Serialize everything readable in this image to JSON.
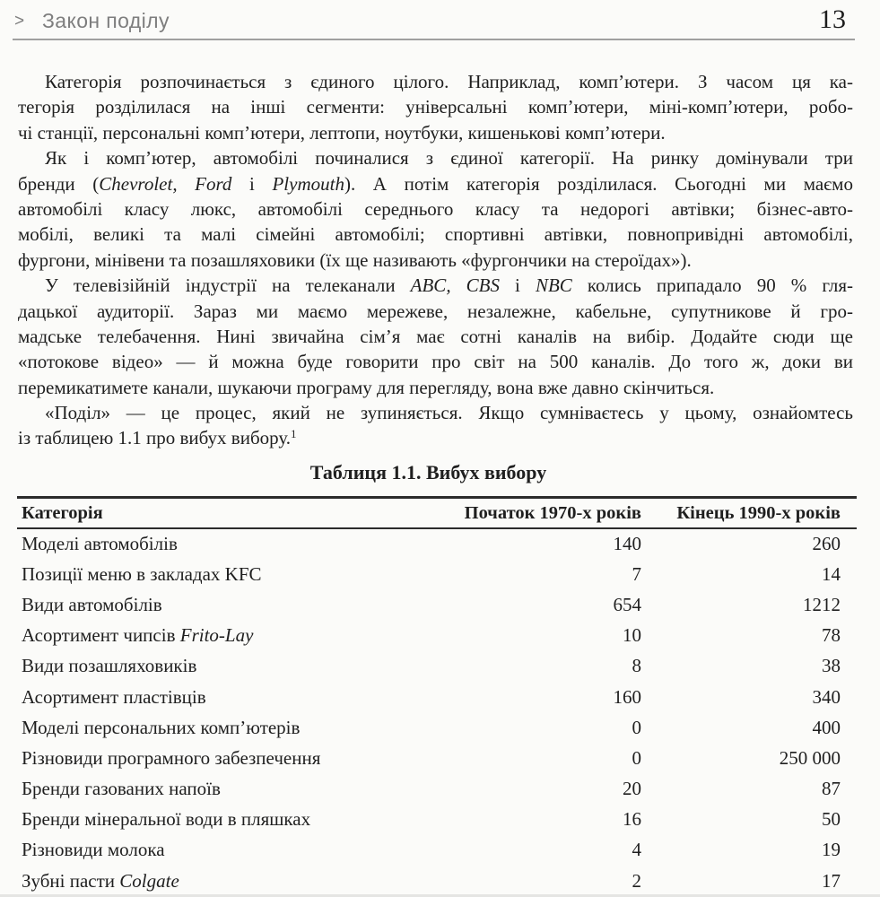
{
  "colors": {
    "background": "#fbfbf9",
    "text": "#1f1f1f",
    "running_head_text": "#7e7e7e",
    "running_head_rule": "#a0a0a0",
    "table_border": "#2b2b2b"
  },
  "header": {
    "chevron": ">",
    "title": "Закон поділу",
    "page_number": "13"
  },
  "paragraphs": [
    {
      "lines": [
        [
          {
            "t": "Категорія розпочинається з єдиного цілого. Наприклад, комп’ютери. З часом ця ка-"
          }
        ],
        [
          {
            "t": "тегорія розділилася на інші сегменти: універсальні комп’ютери, міні-комп’ютери, робо-"
          }
        ],
        [
          {
            "t": "чі станції, персональні комп’ютери, лептопи, ноутбуки, кишенькові комп’ютери."
          }
        ]
      ]
    },
    {
      "lines": [
        [
          {
            "t": "Як і комп’ютер, автомобілі починалися з єдиної категорії. На ринку домінували три"
          }
        ],
        [
          {
            "t": "бренди ("
          },
          {
            "t": "Chevrolet, Ford",
            "i": true
          },
          {
            "t": " і "
          },
          {
            "t": "Plymouth",
            "i": true
          },
          {
            "t": "). А потім категорія розділилася. Сьогодні ми маємо"
          }
        ],
        [
          {
            "t": "автомобілі класу люкс, автомобілі середнього класу та недорогі автівки; бізнес-авто-"
          }
        ],
        [
          {
            "t": "мобілі, великі та малі сімейні автомобілі; спортивні автівки, повнопривідні автомобілі,"
          }
        ],
        [
          {
            "t": "фургони, мінівени та позашляховики (їх ще називають «фургончики на стероїдах»)."
          }
        ]
      ]
    },
    {
      "lines": [
        [
          {
            "t": "У телевізійній індустрії на телеканали "
          },
          {
            "t": "ABC, CBS",
            "i": true
          },
          {
            "t": " і "
          },
          {
            "t": "NBC",
            "i": true
          },
          {
            "t": " колись припадало 90 % гля-"
          }
        ],
        [
          {
            "t": "дацької аудиторії. Зараз ми маємо мережеве, незалежне, кабельне, супутникове й гро-"
          }
        ],
        [
          {
            "t": "мадське телебачення. Нині звичайна сім’я має сотні каналів на вибір. Додайте сюди ще"
          }
        ],
        [
          {
            "t": "«потокове відео» — й можна буде говорити про світ на 500 каналів. До того ж, доки ви"
          }
        ],
        [
          {
            "t": "перемикатимете канали, шукаючи програму для перегляду, вона вже давно скінчиться."
          }
        ]
      ]
    },
    {
      "lines": [
        [
          {
            "t": "«Поділ» — це процес, який не зупиняється. Якщо сумніваєтесь у цьому, ознайомтесь"
          }
        ],
        [
          {
            "t": "із таблицею 1.1 про вибух вибору."
          },
          {
            "t": "1",
            "sup": true
          }
        ]
      ]
    }
  ],
  "table": {
    "title": "Таблиця 1.1. Вибух вибору",
    "columns": [
      "Категорія",
      "Початок 1970-х років",
      "Кінець 1990-х років"
    ],
    "rows": [
      {
        "label": [
          {
            "t": "Моделі автомобілів"
          }
        ],
        "start": "140",
        "end": "260"
      },
      {
        "label": [
          {
            "t": "Позиції меню в закладах KFC"
          }
        ],
        "start": "7",
        "end": "14"
      },
      {
        "label": [
          {
            "t": "Види автомобілів"
          }
        ],
        "start": "654",
        "end": "1212"
      },
      {
        "label": [
          {
            "t": "Асортимент чипсів "
          },
          {
            "t": "Frito-Lay",
            "i": true
          }
        ],
        "start": "10",
        "end": "78"
      },
      {
        "label": [
          {
            "t": "Види позашляховиків"
          }
        ],
        "start": "8",
        "end": "38"
      },
      {
        "label": [
          {
            "t": "Асортимент пластівців"
          }
        ],
        "start": "160",
        "end": "340"
      },
      {
        "label": [
          {
            "t": "Моделі персональних комп’ютерів"
          }
        ],
        "start": "0",
        "end": "400"
      },
      {
        "label": [
          {
            "t": "Різновиди програмного забезпечення"
          }
        ],
        "start": "0",
        "end": "250 000"
      },
      {
        "label": [
          {
            "t": "Бренди газованих напоїв"
          }
        ],
        "start": "20",
        "end": "87"
      },
      {
        "label": [
          {
            "t": "Бренди мінеральної води в пляшках"
          }
        ],
        "start": "16",
        "end": "50"
      },
      {
        "label": [
          {
            "t": "Різновиди молока"
          }
        ],
        "start": "4",
        "end": "19"
      },
      {
        "label": [
          {
            "t": "Зубні пасти "
          },
          {
            "t": "Colgate",
            "i": true
          }
        ],
        "start": "2",
        "end": "17"
      }
    ]
  }
}
